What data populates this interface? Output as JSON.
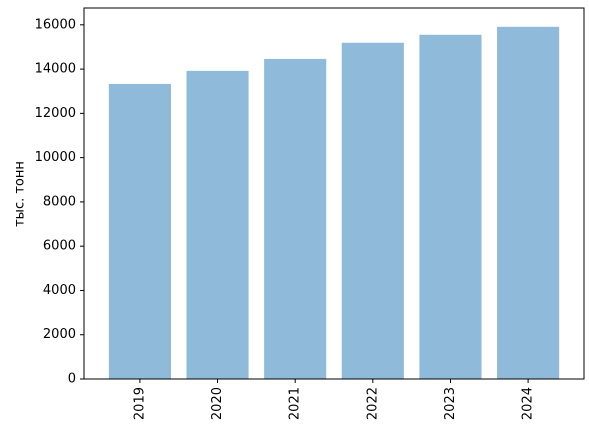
{
  "chart_data": {
    "type": "bar",
    "categories": [
      "2019",
      "2020",
      "2021",
      "2022",
      "2023",
      "2024"
    ],
    "values": [
      13330,
      13920,
      14460,
      15190,
      15550,
      15910
    ],
    "color": "#8fbad9",
    "y_label": "тыс. тонн",
    "ylim": [
      0,
      16760
    ],
    "yticks": [
      0,
      2000,
      4000,
      6000,
      8000,
      10000,
      12000,
      14000,
      16000
    ],
    "grid": false
  }
}
